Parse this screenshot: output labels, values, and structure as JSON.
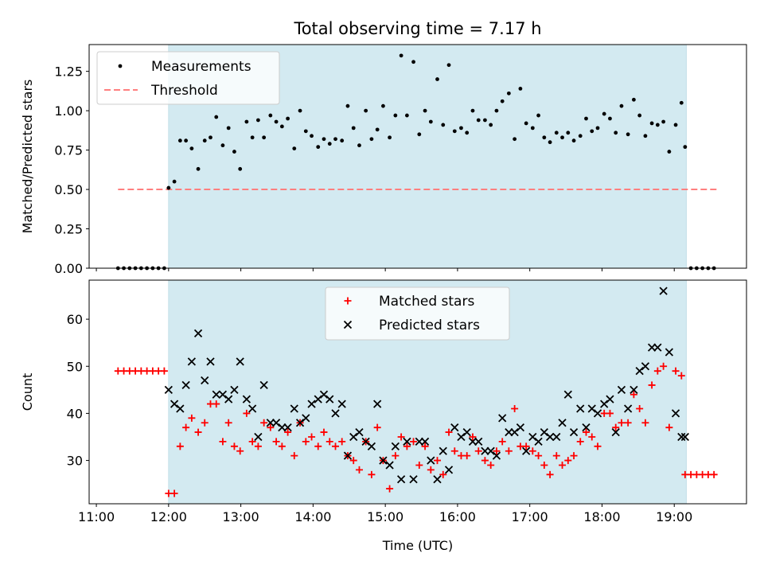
{
  "colors": {
    "shade": "#d3eaf1",
    "matched": "#ff0000",
    "predicted": "#000000",
    "threshold": "#ff7f7f",
    "axis": "#000000"
  },
  "chart_data": [
    {
      "type": "scatter",
      "title": "Total observing time = 7.17 h",
      "ylabel": "Matched/Predicted stars",
      "xlabel": "",
      "x_unit": "hours UTC",
      "xlim": [
        10.9,
        20.0
      ],
      "ylim": [
        0.0,
        1.42
      ],
      "yticks": [
        0.0,
        0.25,
        0.5,
        0.75,
        1.0,
        1.25
      ],
      "ytick_labels": [
        "0.00",
        "0.25",
        "0.50",
        "0.75",
        "1.00",
        "1.25"
      ],
      "shaded_span": [
        12.0,
        19.167
      ],
      "legend_position": "top-left",
      "legend": [
        "Measurements",
        "Threshold"
      ],
      "threshold": {
        "name": "Threshold",
        "value": 0.5,
        "x": [
          11.3,
          19.6
        ]
      },
      "series": [
        {
          "name": "Measurements",
          "x": [
            11.3,
            11.38,
            11.46,
            11.54,
            11.62,
            11.7,
            11.78,
            11.86,
            11.94,
            12.0,
            12.08,
            12.16,
            12.24,
            12.32,
            12.41,
            12.5,
            12.58,
            12.66,
            12.75,
            12.83,
            12.91,
            12.99,
            13.08,
            13.16,
            13.24,
            13.32,
            13.41,
            13.49,
            13.57,
            13.65,
            13.74,
            13.82,
            13.9,
            13.98,
            14.07,
            14.15,
            14.23,
            14.31,
            14.4,
            14.48,
            14.56,
            14.64,
            14.73,
            14.81,
            14.89,
            14.97,
            15.06,
            15.14,
            15.22,
            15.3,
            15.39,
            15.47,
            15.55,
            15.63,
            15.72,
            15.8,
            15.88,
            15.96,
            16.05,
            16.13,
            16.21,
            16.29,
            16.38,
            16.46,
            16.54,
            16.62,
            16.71,
            16.79,
            16.87,
            16.95,
            17.04,
            17.12,
            17.2,
            17.28,
            17.37,
            17.45,
            17.53,
            17.61,
            17.7,
            17.78,
            17.86,
            17.94,
            18.03,
            18.11,
            18.19,
            18.27,
            18.36,
            18.44,
            18.52,
            18.6,
            18.69,
            18.77,
            18.85,
            18.93,
            19.02,
            19.1,
            19.15,
            19.23,
            19.31,
            19.39,
            19.47,
            19.55
          ],
          "y": [
            0,
            0,
            0,
            0,
            0,
            0,
            0,
            0,
            0,
            0.51,
            0.55,
            0.81,
            0.81,
            0.76,
            0.63,
            0.81,
            0.83,
            0.96,
            0.78,
            0.89,
            0.74,
            0.63,
            0.93,
            0.83,
            0.94,
            0.83,
            0.97,
            0.93,
            0.9,
            0.95,
            0.76,
            1.0,
            0.87,
            0.84,
            0.77,
            0.82,
            0.79,
            0.82,
            0.81,
            1.03,
            0.89,
            0.78,
            1.0,
            0.82,
            0.88,
            1.03,
            0.83,
            0.97,
            1.35,
            0.97,
            1.31,
            0.85,
            1.0,
            0.93,
            1.2,
            0.91,
            1.29,
            0.87,
            0.89,
            0.86,
            1.0,
            0.94,
            0.94,
            0.91,
            1.0,
            1.06,
            1.11,
            0.82,
            1.14,
            0.92,
            0.89,
            0.97,
            0.83,
            0.8,
            0.86,
            0.83,
            0.86,
            0.81,
            0.84,
            0.95,
            0.87,
            0.89,
            0.98,
            0.95,
            0.86,
            1.03,
            0.85,
            1.07,
            0.97,
            0.84,
            0.92,
            0.91,
            0.93,
            0.74,
            0.91,
            1.05,
            0.77,
            0,
            0,
            0,
            0,
            0
          ]
        }
      ]
    },
    {
      "type": "scatter",
      "title": "",
      "xlabel": "Time (UTC)",
      "ylabel": "Count",
      "x_unit": "hours UTC",
      "xlim": [
        10.9,
        20.0
      ],
      "ylim": [
        20.8,
        68.3
      ],
      "xticks": [
        11,
        12,
        13,
        14,
        15,
        16,
        17,
        18,
        19
      ],
      "xtick_labels": [
        "11:00",
        "12:00",
        "13:00",
        "14:00",
        "15:00",
        "16:00",
        "17:00",
        "18:00",
        "19:00"
      ],
      "yticks": [
        30,
        40,
        50,
        60
      ],
      "ytick_labels": [
        "30",
        "40",
        "50",
        "60"
      ],
      "shaded_span": [
        12.0,
        19.167
      ],
      "legend_position": "upper center",
      "legend": [
        "Matched stars",
        "Predicted stars"
      ],
      "series": [
        {
          "name": "Matched stars",
          "x": [
            11.3,
            11.38,
            11.46,
            11.54,
            11.62,
            11.7,
            11.78,
            11.86,
            11.94,
            12.0,
            12.08,
            12.16,
            12.24,
            12.32,
            12.41,
            12.5,
            12.58,
            12.66,
            12.75,
            12.83,
            12.91,
            12.99,
            13.08,
            13.16,
            13.24,
            13.32,
            13.41,
            13.49,
            13.57,
            13.65,
            13.74,
            13.82,
            13.9,
            13.98,
            14.07,
            14.15,
            14.23,
            14.31,
            14.4,
            14.48,
            14.56,
            14.64,
            14.73,
            14.81,
            14.89,
            14.97,
            15.06,
            15.14,
            15.22,
            15.3,
            15.39,
            15.47,
            15.55,
            15.63,
            15.72,
            15.8,
            15.88,
            15.96,
            16.05,
            16.13,
            16.21,
            16.29,
            16.38,
            16.46,
            16.54,
            16.62,
            16.71,
            16.79,
            16.87,
            16.95,
            17.04,
            17.12,
            17.2,
            17.28,
            17.37,
            17.45,
            17.53,
            17.61,
            17.7,
            17.78,
            17.86,
            17.94,
            18.03,
            18.11,
            18.19,
            18.27,
            18.36,
            18.44,
            18.52,
            18.6,
            18.69,
            18.77,
            18.85,
            18.93,
            19.02,
            19.1,
            19.15,
            19.23,
            19.31,
            19.39,
            19.47,
            19.55
          ],
          "y": [
            49,
            49,
            49,
            49,
            49,
            49,
            49,
            49,
            49,
            23,
            23,
            33,
            37,
            39,
            36,
            38,
            42,
            42,
            34,
            38,
            33,
            32,
            40,
            34,
            33,
            38,
            37,
            34,
            33,
            36,
            31,
            38,
            34,
            35,
            33,
            36,
            34,
            33,
            34,
            31,
            30,
            28,
            34,
            27,
            37,
            30,
            24,
            31,
            35,
            33,
            34,
            29,
            33,
            28,
            30,
            27,
            36,
            32,
            31,
            31,
            35,
            32,
            30,
            29,
            32,
            34,
            32,
            41,
            33,
            33,
            32,
            31,
            29,
            27,
            31,
            29,
            30,
            31,
            34,
            36,
            35,
            33,
            40,
            40,
            37,
            38,
            38,
            44,
            41,
            38,
            46,
            49,
            50,
            37,
            49,
            48,
            27,
            27,
            27,
            27,
            27,
            27
          ]
        },
        {
          "name": "Predicted stars",
          "x": [
            12.0,
            12.08,
            12.16,
            12.24,
            12.32,
            12.41,
            12.5,
            12.58,
            12.66,
            12.75,
            12.83,
            12.91,
            12.99,
            13.08,
            13.16,
            13.24,
            13.32,
            13.41,
            13.49,
            13.57,
            13.65,
            13.74,
            13.82,
            13.9,
            13.98,
            14.07,
            14.15,
            14.23,
            14.31,
            14.4,
            14.48,
            14.56,
            14.64,
            14.73,
            14.81,
            14.89,
            14.97,
            15.06,
            15.14,
            15.22,
            15.3,
            15.39,
            15.47,
            15.55,
            15.63,
            15.72,
            15.8,
            15.88,
            15.96,
            16.05,
            16.13,
            16.21,
            16.29,
            16.38,
            16.46,
            16.54,
            16.62,
            16.71,
            16.79,
            16.87,
            16.95,
            17.04,
            17.12,
            17.2,
            17.28,
            17.37,
            17.45,
            17.53,
            17.61,
            17.7,
            17.78,
            17.86,
            17.94,
            18.03,
            18.11,
            18.19,
            18.27,
            18.36,
            18.44,
            18.52,
            18.6,
            18.69,
            18.77,
            18.85,
            18.93,
            19.02,
            19.1,
            19.15
          ],
          "y": [
            45,
            42,
            41,
            46,
            51,
            57,
            47,
            51,
            44,
            44,
            43,
            45,
            51,
            43,
            41,
            35,
            46,
            38,
            38,
            37,
            37,
            41,
            38,
            39,
            42,
            43,
            44,
            43,
            40,
            42,
            31,
            35,
            36,
            34,
            33,
            42,
            30,
            29,
            33,
            26,
            34,
            26,
            34,
            34,
            30,
            26,
            32,
            28,
            37,
            35,
            36,
            34,
            34,
            32,
            32,
            31,
            39,
            36,
            36,
            37,
            32,
            35,
            34,
            36,
            35,
            35,
            38,
            44,
            36,
            41,
            37,
            41,
            40,
            42,
            43,
            36,
            45,
            41,
            45,
            49,
            50,
            54,
            54,
            66,
            53,
            40,
            35,
            35
          ]
        }
      ]
    }
  ]
}
